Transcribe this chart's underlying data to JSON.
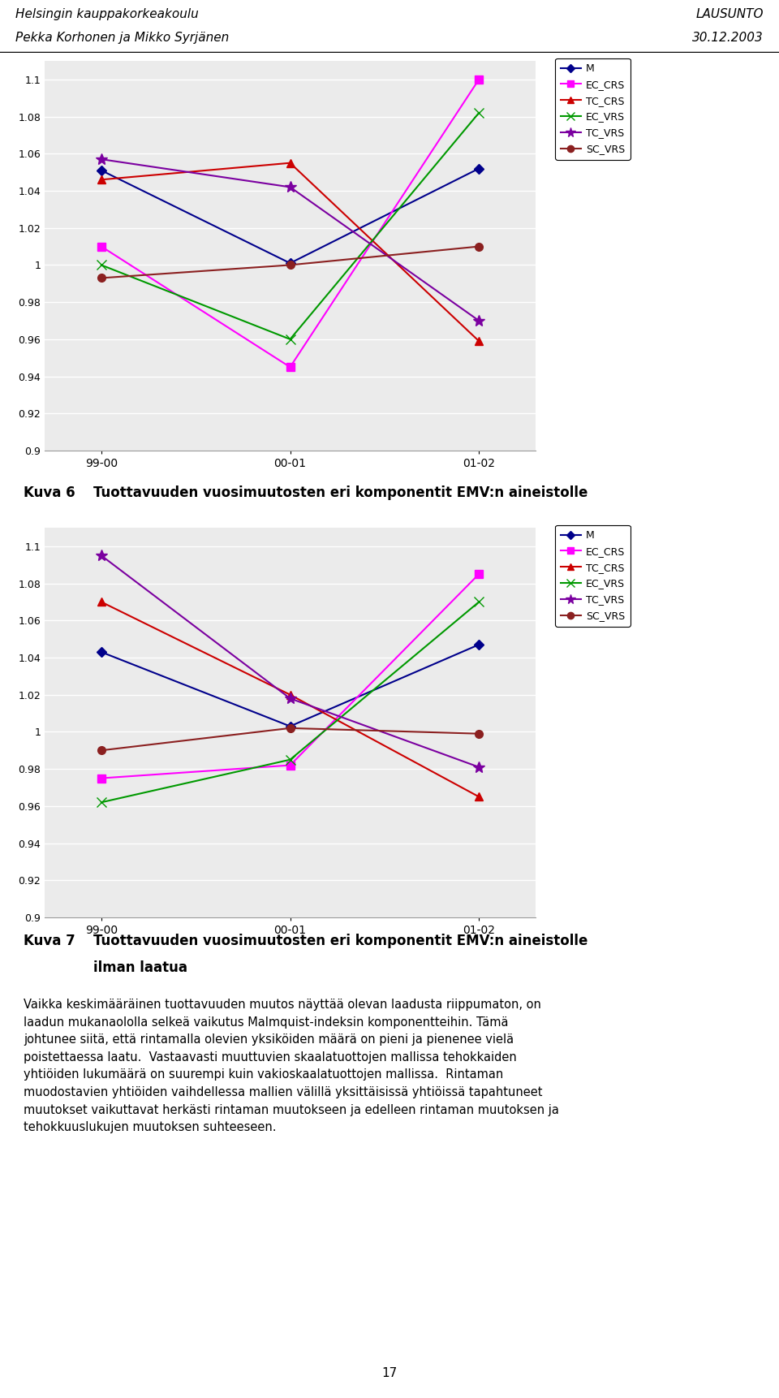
{
  "header_left_line1": "Helsingin kauppakorkeakoulu",
  "header_left_line2": "Pekka Korhonen ja Mikko Syrjänen",
  "header_right_line1": "LAUSUNTO",
  "header_right_line2": "30.12.2003",
  "x_labels": [
    "99-00",
    "00-01",
    "01-02"
  ],
  "chart1": {
    "M": [
      1.051,
      1.001,
      1.052
    ],
    "EC_CRS": [
      1.01,
      0.945,
      1.1
    ],
    "TC_CRS": [
      1.046,
      1.055,
      0.959
    ],
    "EC_VRS": [
      1.0,
      0.96,
      1.082
    ],
    "TC_VRS": [
      1.057,
      1.042,
      0.97
    ],
    "SC_VRS": [
      0.993,
      1.0,
      1.01
    ]
  },
  "chart2": {
    "M": [
      1.043,
      1.003,
      1.047
    ],
    "EC_CRS": [
      0.975,
      0.982,
      1.085
    ],
    "TC_CRS": [
      1.07,
      1.02,
      0.965
    ],
    "EC_VRS": [
      0.962,
      0.985,
      1.07
    ],
    "TC_VRS": [
      1.095,
      1.018,
      0.981
    ],
    "SC_VRS": [
      0.99,
      1.002,
      0.999
    ]
  },
  "caption1_num": "Kuva 6",
  "caption1_text": "Tuottavuuden vuosimuutosten eri komponentit EMV:n aineistolle",
  "caption2_num": "Kuva 7",
  "caption2_text": "Tuottavuuden vuosimuutosten eri komponentit EMV:n aineistolle",
  "caption2_sub": "ilman laatua",
  "body_text_lines": [
    "Vaikka keskimääräinen tuottavuuden muutos näyttää olevan laadusta riippumaton, on",
    "laadun mukanaololla selkeä vaikutus Malmquist-indeksin komponentteihin. Tämä",
    "johtunee siitä, että rintamalla olevien yksiköiden määrä on pieni ja pienenee vielä",
    "poistettaessa laatu.  Vastaavasti muuttuvien skaalatuottojen mallissa tehokkaiden",
    "yhtiöiden lukumäärä on suurempi kuin vakioskaalatuottojen mallissa.  Rintaman",
    "muodostavien yhtiöiden vaihdellessa mallien välillä yksittäisissä yhtiöissä tapahtuneet",
    "muutokset vaikuttavat herkästi rintaman muutokseen ja edelleen rintaman muutoksen ja",
    "tehokkuuslukujen muutoksen suhteeseen."
  ],
  "page_number": "17",
  "ylim": [
    0.9,
    1.11
  ],
  "yticks": [
    0.9,
    0.92,
    0.94,
    0.96,
    0.98,
    1.0,
    1.02,
    1.04,
    1.06,
    1.08,
    1.1
  ],
  "ytick_labels": [
    "0.9",
    "0.92",
    "0.94",
    "0.96",
    "0.98",
    "1",
    "1.02",
    "1.04",
    "1.06",
    "1.08",
    "1.1"
  ],
  "series_order": [
    "M",
    "EC_CRS",
    "TC_CRS",
    "EC_VRS",
    "TC_VRS",
    "SC_VRS"
  ],
  "colors": {
    "M": "#00008B",
    "EC_CRS": "#FF00FF",
    "TC_CRS": "#CC0000",
    "EC_VRS": "#009900",
    "TC_VRS": "#7B00A0",
    "SC_VRS": "#8B2020"
  },
  "markers": {
    "M": "D",
    "EC_CRS": "s",
    "TC_CRS": "^",
    "EC_VRS": "x",
    "TC_VRS": "*",
    "SC_VRS": "o"
  },
  "marker_sizes": {
    "M": 6,
    "EC_CRS": 7,
    "TC_CRS": 7,
    "EC_VRS": 8,
    "TC_VRS": 10,
    "SC_VRS": 7
  }
}
